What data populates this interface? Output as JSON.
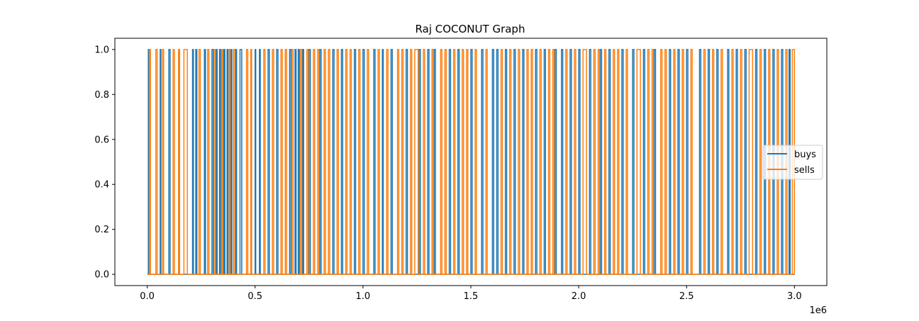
{
  "chart_data": {
    "type": "line",
    "title": "Raj COCONUT Graph",
    "xlabel": "",
    "ylabel": "",
    "x_offset_label": "1e6",
    "x_scale_multiplier": 1000000,
    "xlim": [
      -150000,
      3150000
    ],
    "ylim": [
      -0.05,
      1.05
    ],
    "x_ticks": [
      0.0,
      0.5,
      1.0,
      1.5,
      2.0,
      2.5,
      3.0
    ],
    "x_tick_labels": [
      "0.0",
      "0.5",
      "1.0",
      "1.5",
      "2.0",
      "2.5",
      "3.0"
    ],
    "y_ticks": [
      0.0,
      0.2,
      0.4,
      0.6,
      0.8,
      1.0
    ],
    "y_tick_labels": [
      "0.0",
      "0.2",
      "0.4",
      "0.6",
      "0.8",
      "1.0"
    ],
    "grid": false,
    "legend_position": "center-right",
    "series": [
      {
        "name": "buys",
        "color": "#1f77b4",
        "pulses": [
          [
            5000,
            8000
          ],
          [
            60000,
            63000
          ],
          [
            100000,
            106000
          ],
          [
            210000,
            214000
          ],
          [
            225000,
            230000
          ],
          [
            265000,
            270000
          ],
          [
            300000,
            306000
          ],
          [
            320000,
            324000
          ],
          [
            335000,
            340000
          ],
          [
            355000,
            360000
          ],
          [
            370000,
            374000
          ],
          [
            388000,
            392000
          ],
          [
            410000,
            414000
          ],
          [
            430000,
            438000
          ],
          [
            500000,
            503000
          ],
          [
            520000,
            524000
          ],
          [
            560000,
            566000
          ],
          [
            600000,
            606000
          ],
          [
            660000,
            666000
          ],
          [
            685000,
            690000
          ],
          [
            700000,
            705000
          ],
          [
            720000,
            725000
          ],
          [
            750000,
            756000
          ],
          [
            800000,
            806000
          ],
          [
            860000,
            866000
          ],
          [
            900000,
            906000
          ],
          [
            960000,
            966000
          ],
          [
            1000000,
            1006000
          ],
          [
            1050000,
            1056000
          ],
          [
            1090000,
            1094000
          ],
          [
            1130000,
            1136000
          ],
          [
            1200000,
            1206000
          ],
          [
            1260000,
            1266000
          ],
          [
            1300000,
            1306000
          ],
          [
            1330000,
            1336000
          ],
          [
            1400000,
            1406000
          ],
          [
            1440000,
            1446000
          ],
          [
            1500000,
            1506000
          ],
          [
            1550000,
            1556000
          ],
          [
            1600000,
            1606000
          ],
          [
            1620000,
            1626000
          ],
          [
            1660000,
            1666000
          ],
          [
            1700000,
            1706000
          ],
          [
            1740000,
            1746000
          ],
          [
            1800000,
            1806000
          ],
          [
            1840000,
            1846000
          ],
          [
            1890000,
            1896000
          ],
          [
            1920000,
            1926000
          ],
          [
            1960000,
            1966000
          ],
          [
            2000000,
            2006000
          ],
          [
            2050000,
            2056000
          ],
          [
            2100000,
            2106000
          ],
          [
            2140000,
            2146000
          ],
          [
            2200000,
            2206000
          ],
          [
            2250000,
            2256000
          ],
          [
            2300000,
            2306000
          ],
          [
            2350000,
            2356000
          ],
          [
            2420000,
            2426000
          ],
          [
            2460000,
            2466000
          ],
          [
            2500000,
            2506000
          ],
          [
            2560000,
            2566000
          ],
          [
            2600000,
            2606000
          ],
          [
            2640000,
            2646000
          ],
          [
            2690000,
            2696000
          ],
          [
            2730000,
            2736000
          ],
          [
            2770000,
            2776000
          ],
          [
            2820000,
            2826000
          ],
          [
            2860000,
            2866000
          ],
          [
            2900000,
            2906000
          ],
          [
            2940000,
            2946000
          ],
          [
            2975000,
            2980000
          ]
        ]
      },
      {
        "name": "sells",
        "color": "#ff7f0e",
        "pulses": [
          [
            10000,
            15000
          ],
          [
            40000,
            46000
          ],
          [
            70000,
            76000
          ],
          [
            120000,
            126000
          ],
          [
            145000,
            150000
          ],
          [
            170000,
            186000
          ],
          [
            240000,
            246000
          ],
          [
            280000,
            286000
          ],
          [
            310000,
            316000
          ],
          [
            345000,
            350000
          ],
          [
            380000,
            384000
          ],
          [
            400000,
            406000
          ],
          [
            460000,
            466000
          ],
          [
            480000,
            484000
          ],
          [
            540000,
            546000
          ],
          [
            580000,
            586000
          ],
          [
            620000,
            626000
          ],
          [
            640000,
            646000
          ],
          [
            670000,
            676000
          ],
          [
            710000,
            716000
          ],
          [
            740000,
            746000
          ],
          [
            770000,
            776000
          ],
          [
            790000,
            796000
          ],
          [
            820000,
            826000
          ],
          [
            840000,
            846000
          ],
          [
            880000,
            886000
          ],
          [
            920000,
            926000
          ],
          [
            940000,
            946000
          ],
          [
            980000,
            986000
          ],
          [
            1020000,
            1026000
          ],
          [
            1070000,
            1076000
          ],
          [
            1110000,
            1116000
          ],
          [
            1160000,
            1166000
          ],
          [
            1180000,
            1186000
          ],
          [
            1220000,
            1226000
          ],
          [
            1240000,
            1256000
          ],
          [
            1280000,
            1286000
          ],
          [
            1320000,
            1326000
          ],
          [
            1360000,
            1366000
          ],
          [
            1380000,
            1386000
          ],
          [
            1420000,
            1426000
          ],
          [
            1460000,
            1466000
          ],
          [
            1480000,
            1486000
          ],
          [
            1520000,
            1526000
          ],
          [
            1570000,
            1576000
          ],
          [
            1640000,
            1646000
          ],
          [
            1680000,
            1686000
          ],
          [
            1720000,
            1726000
          ],
          [
            1760000,
            1766000
          ],
          [
            1780000,
            1786000
          ],
          [
            1820000,
            1826000
          ],
          [
            1860000,
            1866000
          ],
          [
            1880000,
            1886000
          ],
          [
            1940000,
            1946000
          ],
          [
            1980000,
            1986000
          ],
          [
            2020000,
            2036000
          ],
          [
            2070000,
            2076000
          ],
          [
            2090000,
            2096000
          ],
          [
            2120000,
            2126000
          ],
          [
            2160000,
            2166000
          ],
          [
            2180000,
            2186000
          ],
          [
            2220000,
            2226000
          ],
          [
            2270000,
            2286000
          ],
          [
            2320000,
            2326000
          ],
          [
            2340000,
            2346000
          ],
          [
            2380000,
            2386000
          ],
          [
            2400000,
            2406000
          ],
          [
            2440000,
            2446000
          ],
          [
            2480000,
            2486000
          ],
          [
            2520000,
            2526000
          ],
          [
            2580000,
            2586000
          ],
          [
            2620000,
            2626000
          ],
          [
            2660000,
            2666000
          ],
          [
            2710000,
            2716000
          ],
          [
            2750000,
            2756000
          ],
          [
            2790000,
            2806000
          ],
          [
            2840000,
            2846000
          ],
          [
            2880000,
            2886000
          ],
          [
            2920000,
            2926000
          ],
          [
            2960000,
            2966000
          ],
          [
            2990000,
            3000000
          ]
        ]
      }
    ]
  }
}
